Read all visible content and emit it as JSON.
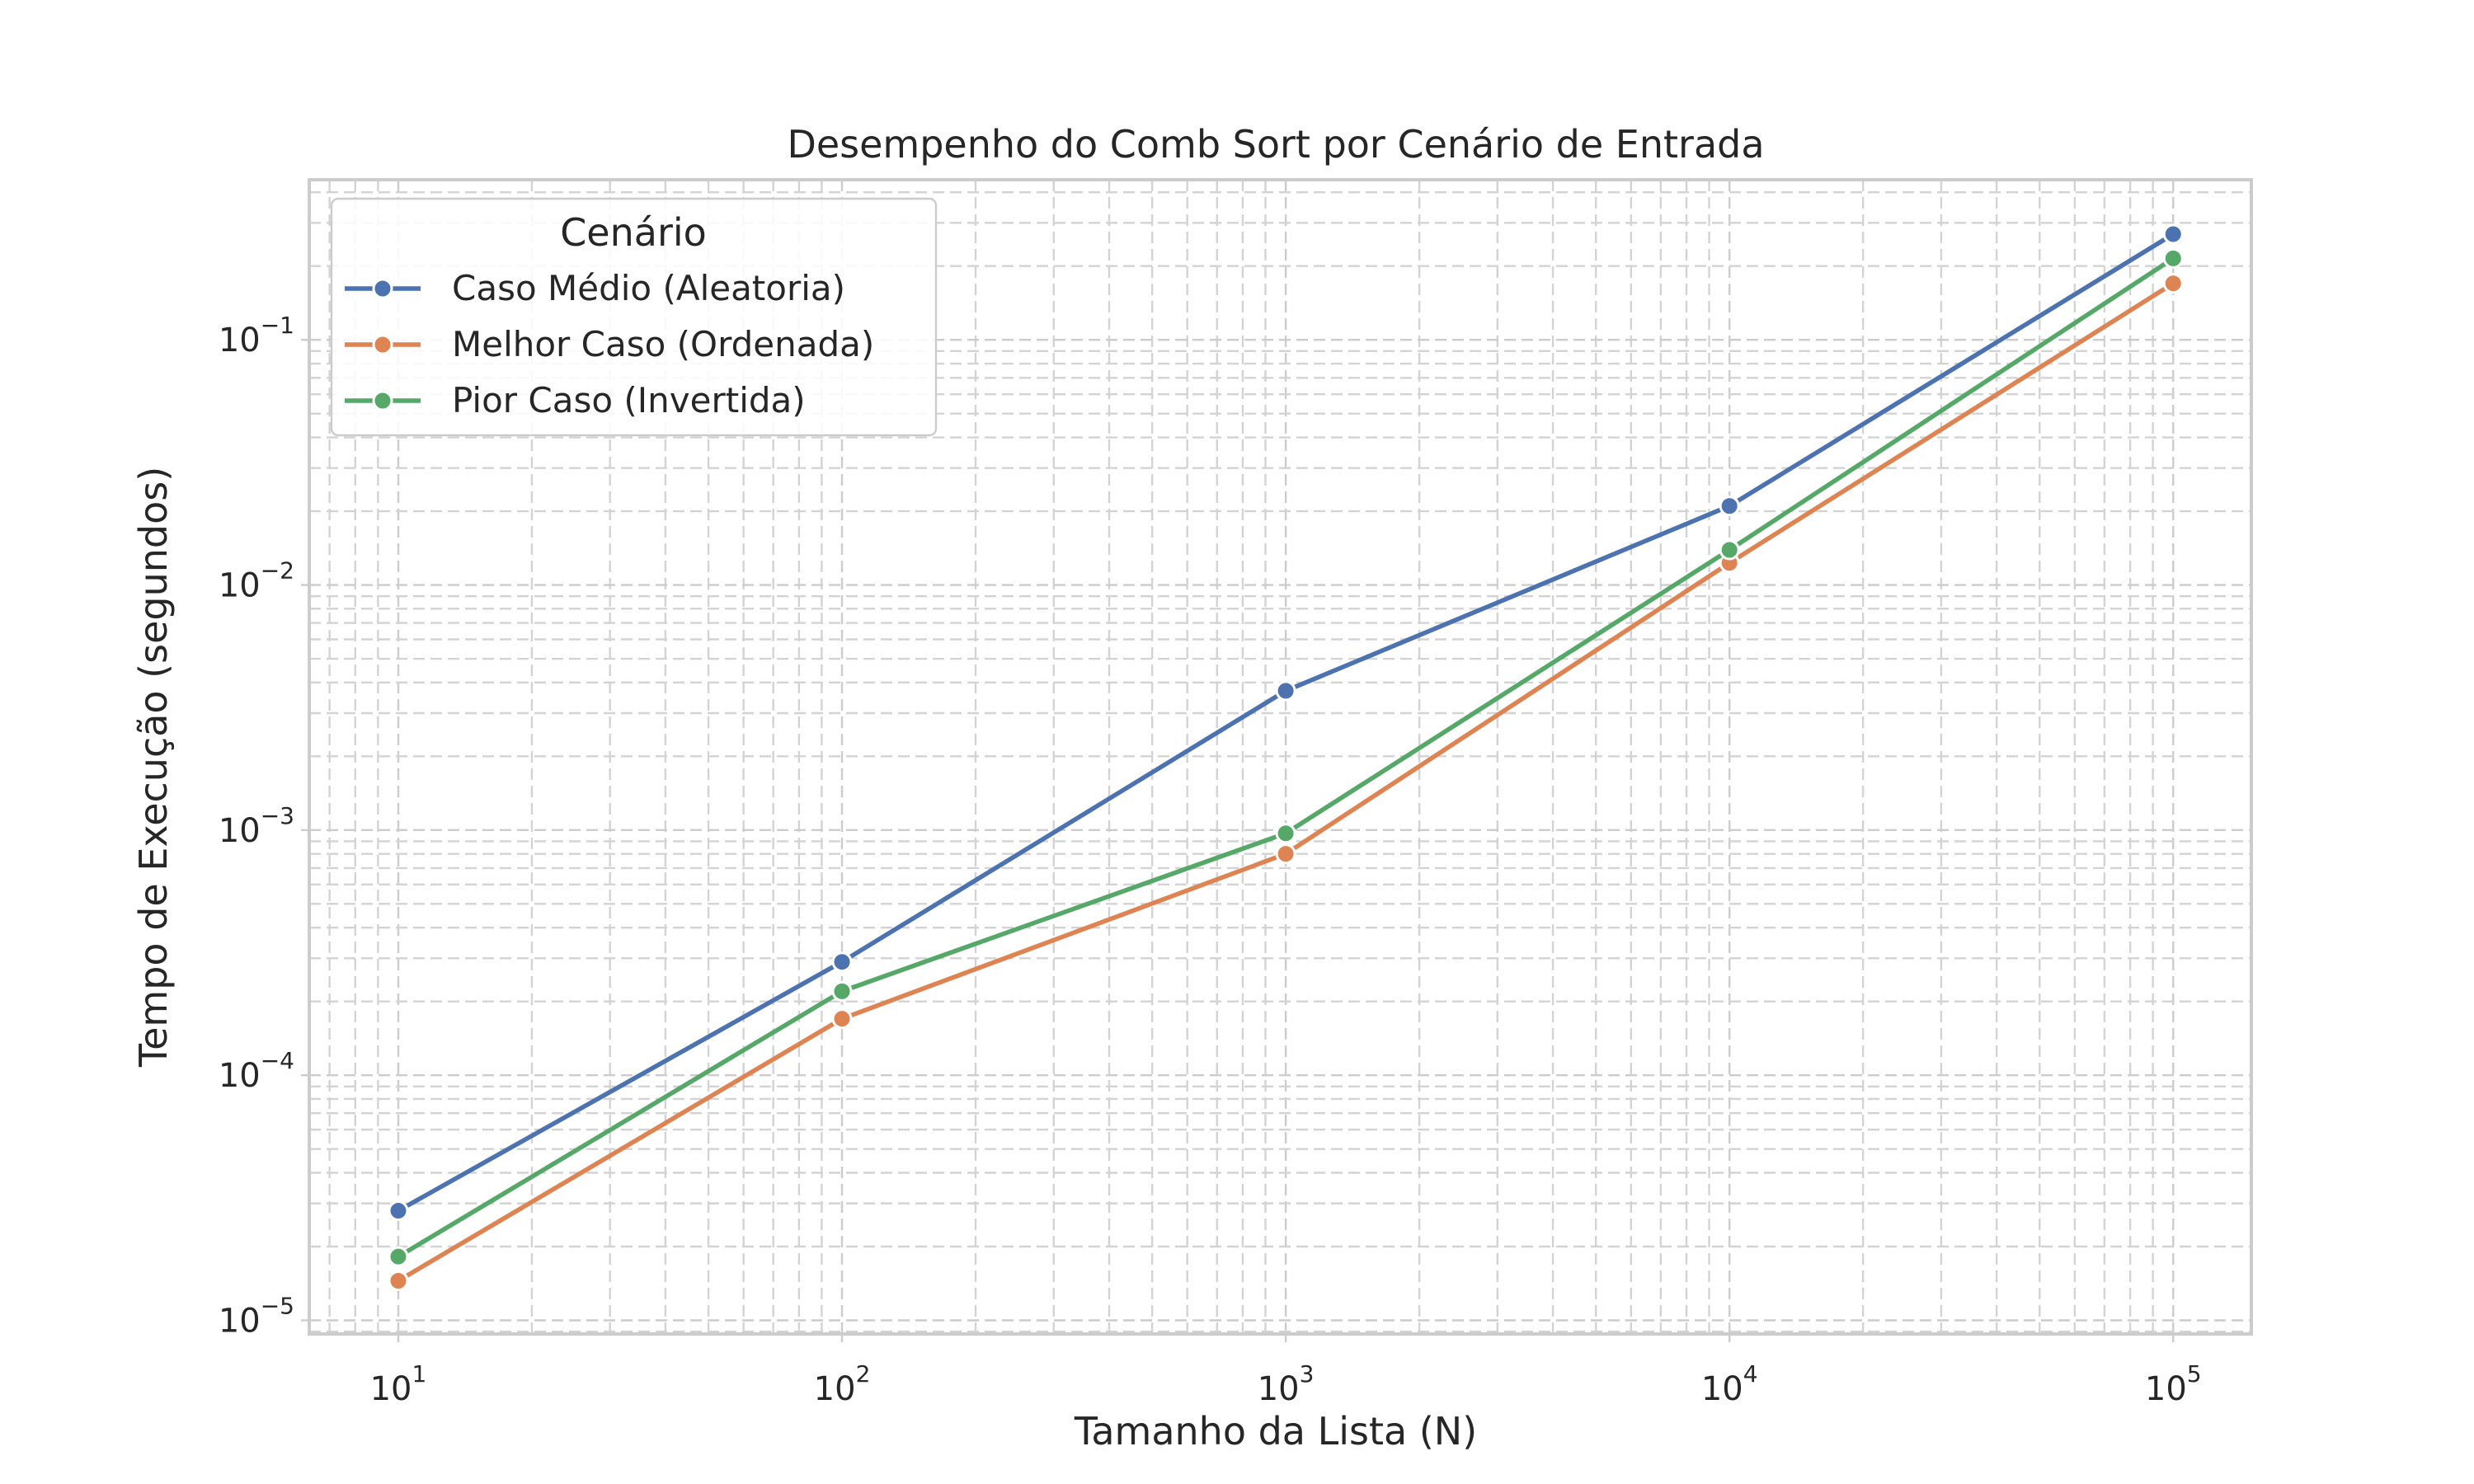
{
  "chart_data": {
    "type": "line",
    "title": "Desempenho do Comb Sort por Cenário de Entrada",
    "xlabel": "Tamanho da Lista (N)",
    "ylabel": "Tempo de Execução (segundos)",
    "xscale": "log",
    "yscale": "log",
    "xlim": [
      6.3,
      150000
    ],
    "ylim": [
      8.8e-06,
      0.45
    ],
    "grid": true,
    "grid_minor": true,
    "x": [
      10,
      100,
      1000,
      10000,
      100000
    ],
    "x_tick_labels": [
      {
        "base": "10",
        "exp": "1",
        "value": 10
      },
      {
        "base": "10",
        "exp": "2",
        "value": 100
      },
      {
        "base": "10",
        "exp": "3",
        "value": 1000
      },
      {
        "base": "10",
        "exp": "4",
        "value": 10000
      },
      {
        "base": "10",
        "exp": "5",
        "value": 100000
      }
    ],
    "y_tick_labels": [
      {
        "base": "10",
        "exp": "−5",
        "value": 1e-05
      },
      {
        "base": "10",
        "exp": "−4",
        "value": 0.0001
      },
      {
        "base": "10",
        "exp": "−3",
        "value": 0.001
      },
      {
        "base": "10",
        "exp": "−2",
        "value": 0.01
      },
      {
        "base": "10",
        "exp": "−1",
        "value": 0.1
      }
    ],
    "legend": {
      "title": "Cenário",
      "placement": "upper-left"
    },
    "series": [
      {
        "name": "Caso Médio (Aleatoria)",
        "color": "#4c72b0",
        "values": [
          2.8e-05,
          0.00029,
          0.0037,
          0.021,
          0.27
        ]
      },
      {
        "name": "Melhor Caso (Ordenada)",
        "color": "#dd8452",
        "values": [
          1.45e-05,
          0.00017,
          0.0008,
          0.0123,
          0.17
        ]
      },
      {
        "name": "Pior Caso (Invertida)",
        "color": "#55a868",
        "values": [
          1.82e-05,
          0.00022,
          0.00097,
          0.0139,
          0.215
        ]
      }
    ]
  }
}
